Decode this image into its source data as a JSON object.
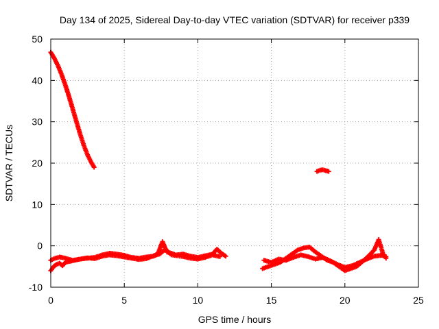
{
  "chart_data": {
    "type": "scatter",
    "title": "Day 134 of 2025, Sidereal Day-to-day VTEC variation (SDTVAR) for receiver p339",
    "xlabel": "GPS time / hours",
    "ylabel": "SDTVAR / TECUs",
    "xlim": [
      0,
      25
    ],
    "ylim": [
      -10,
      50
    ],
    "xticks": [
      0,
      5,
      10,
      15,
      20,
      25
    ],
    "yticks": [
      -10,
      0,
      10,
      20,
      30,
      40,
      50
    ],
    "grid": true,
    "marker": "+",
    "series": [
      {
        "name": "SDTVAR",
        "color": "#ff0000",
        "segments": [
          {
            "x": [
              0.0,
              0.25,
              0.5,
              0.75,
              1.0,
              1.25,
              1.5,
              1.75,
              2.0,
              2.25,
              2.5,
              2.75,
              2.95
            ],
            "y": [
              46.8,
              45.3,
              43.5,
              41.3,
              38.8,
              36.0,
              33.0,
              30.0,
              27.0,
              24.3,
              22.0,
              20.2,
              19.0
            ]
          },
          {
            "x": [
              18.1,
              18.3,
              18.5,
              18.7,
              18.9
            ],
            "y": [
              18.0,
              18.3,
              18.4,
              18.2,
              18.0
            ]
          },
          {
            "x": [
              0.0,
              0.2,
              0.4,
              0.6,
              0.8,
              1.0,
              1.5,
              2.0,
              2.5,
              3.0,
              3.5,
              4.0,
              4.5,
              5.0,
              5.5,
              6.0,
              6.5,
              7.0,
              7.3,
              7.6,
              7.9,
              8.2,
              8.5,
              9.0,
              9.5,
              10.0,
              10.5,
              11.0,
              11.3,
              11.6,
              11.9
            ],
            "y": [
              -6.0,
              -5.0,
              -4.5,
              -4.2,
              -4.8,
              -4.0,
              -3.6,
              -3.2,
              -3.0,
              -2.8,
              -2.2,
              -1.8,
              -2.0,
              -2.3,
              -2.8,
              -3.0,
              -2.7,
              -2.5,
              -1.8,
              1.0,
              -1.5,
              -1.8,
              -2.2,
              -2.0,
              -2.5,
              -2.8,
              -2.4,
              -2.0,
              -0.8,
              -1.8,
              -2.5
            ]
          },
          {
            "x": [
              0.0,
              0.3,
              0.6,
              1.0,
              1.5,
              2.0,
              2.5,
              3.0,
              3.5,
              4.0,
              4.5,
              5.0,
              5.5,
              6.0,
              6.5,
              7.0,
              7.4,
              7.8,
              8.2,
              9.0,
              9.5,
              10.0,
              10.5,
              11.0,
              11.5
            ],
            "y": [
              -3.5,
              -3.0,
              -2.7,
              -3.0,
              -3.5,
              -3.2,
              -2.9,
              -3.1,
              -2.5,
              -2.2,
              -2.4,
              -2.7,
              -3.0,
              -3.3,
              -3.1,
              -2.4,
              -2.0,
              -0.8,
              -2.2,
              -2.6,
              -3.0,
              -3.2,
              -2.8,
              -2.2,
              -2.6
            ]
          },
          {
            "x": [
              14.4,
              14.8,
              15.2,
              15.6,
              16.0,
              16.4,
              16.8,
              17.2,
              17.6,
              18.0,
              18.4,
              18.8,
              19.2,
              19.6,
              20.0,
              20.4,
              20.8,
              21.2,
              21.6,
              22.0,
              22.3,
              22.6,
              22.8
            ],
            "y": [
              -5.5,
              -5.0,
              -4.5,
              -4.0,
              -3.0,
              -2.0,
              -1.0,
              -0.5,
              -0.3,
              -1.5,
              -2.5,
              -3.5,
              -4.0,
              -5.0,
              -6.0,
              -5.5,
              -5.0,
              -3.8,
              -2.5,
              -1.0,
              1.5,
              -2.0,
              -3.0
            ]
          },
          {
            "x": [
              14.5,
              15.0,
              15.5,
              16.0,
              16.5,
              17.0,
              17.5,
              18.0,
              18.5,
              19.0,
              19.5,
              20.0,
              20.5,
              21.0,
              21.5,
              22.0,
              22.5,
              22.8
            ],
            "y": [
              -3.5,
              -4.0,
              -3.2,
              -3.5,
              -2.8,
              -2.2,
              -2.6,
              -3.2,
              -2.8,
              -3.6,
              -4.5,
              -5.2,
              -4.8,
              -4.0,
              -3.2,
              -2.5,
              -2.3,
              -2.6
            ]
          }
        ]
      }
    ]
  }
}
